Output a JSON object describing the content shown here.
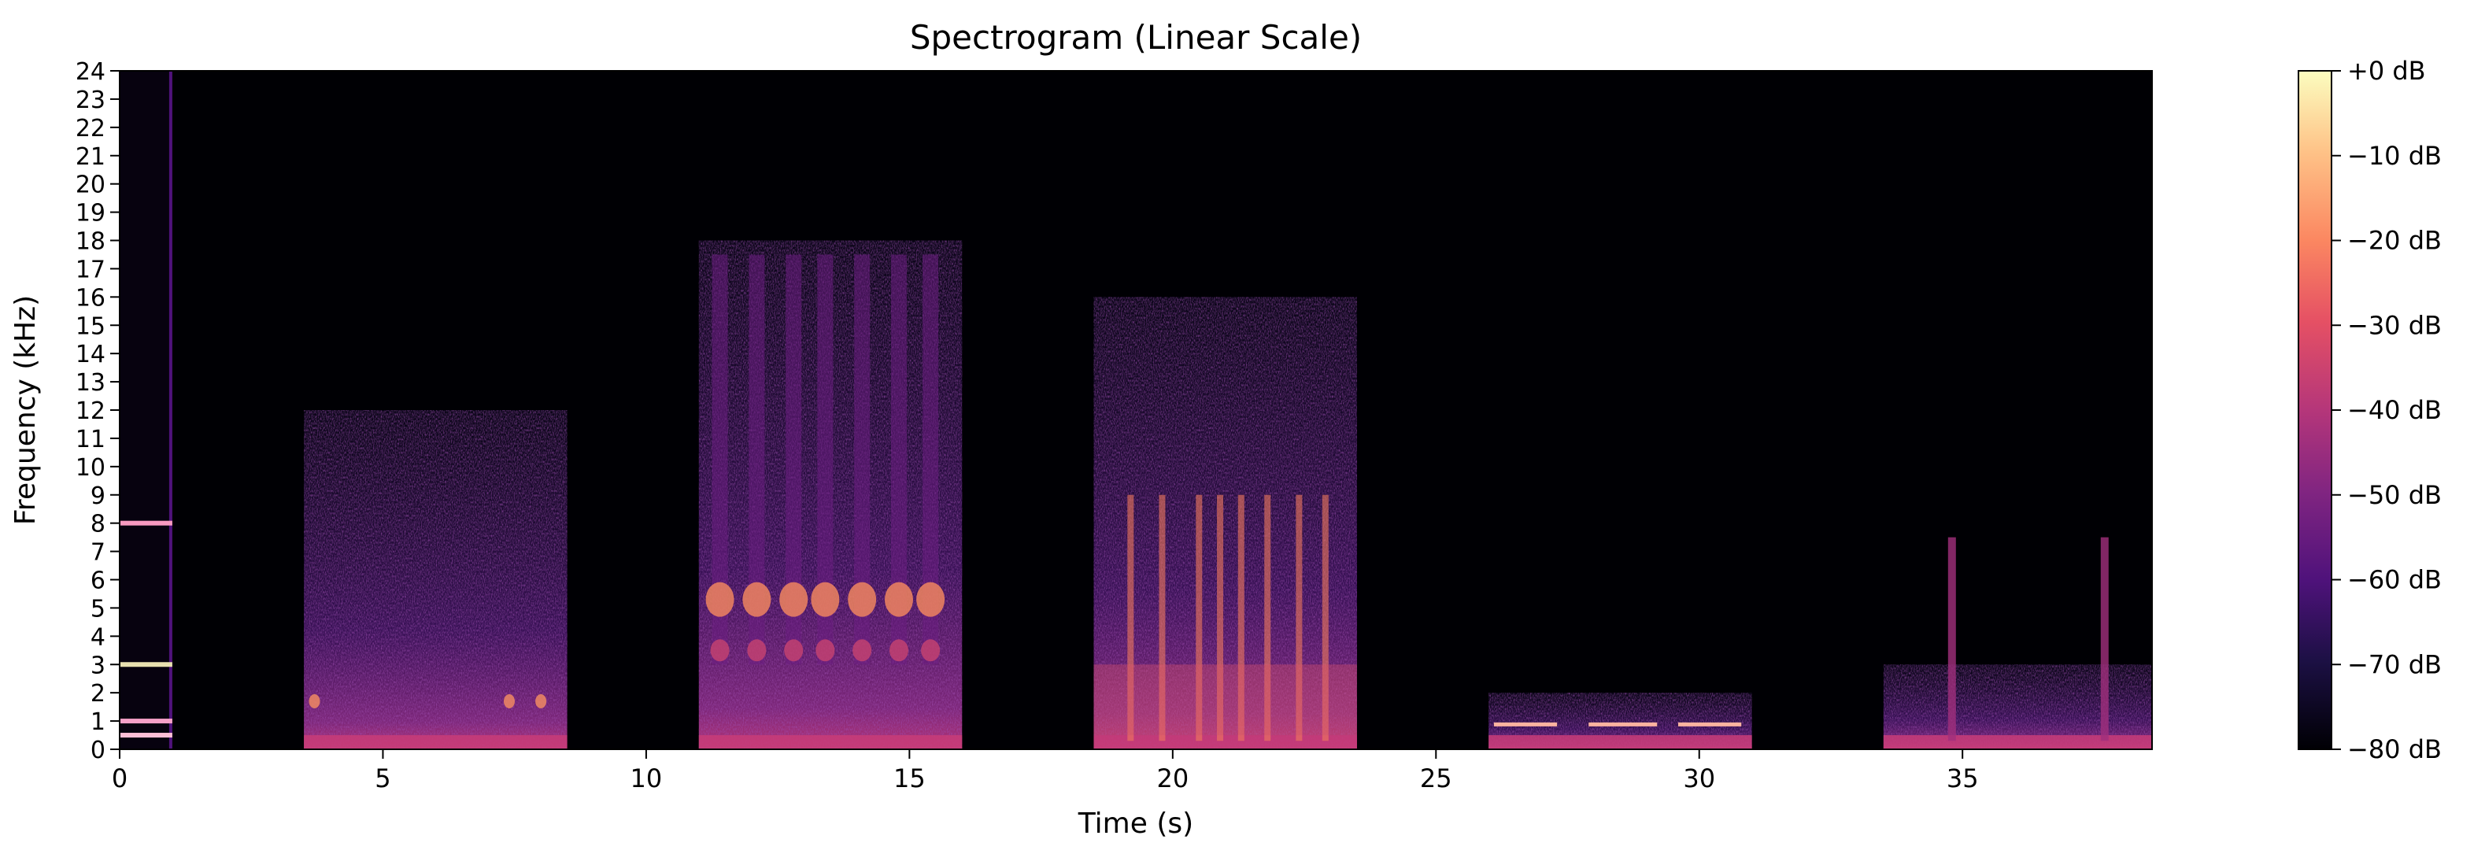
{
  "chart_data": {
    "type": "heatmap",
    "title": "Spectrogram (Linear Scale)",
    "xlabel": "Time (s)",
    "ylabel": "Frequency (kHz)",
    "xlim": [
      0,
      38.6
    ],
    "ylim": [
      0,
      24
    ],
    "x_ticks": [
      0,
      5,
      10,
      15,
      20,
      25,
      30,
      35
    ],
    "y_ticks": [
      0,
      1,
      2,
      3,
      4,
      5,
      6,
      7,
      8,
      9,
      10,
      11,
      12,
      13,
      14,
      15,
      16,
      17,
      18,
      19,
      20,
      21,
      22,
      23,
      24
    ],
    "colormap": "magma",
    "colorbar": {
      "range_db": [
        -80,
        0
      ],
      "ticks": [
        "+0 dB",
        "−10 dB",
        "−20 dB",
        "−30 dB",
        "−40 dB",
        "−50 dB",
        "−60 dB",
        "−70 dB",
        "−80 dB"
      ],
      "tick_values": [
        0,
        -10,
        -20,
        -30,
        -40,
        -50,
        -60,
        -70,
        -80
      ]
    },
    "segments": [
      {
        "start": 0.0,
        "end": 1.0,
        "max_khz": 24,
        "kind": "tones",
        "tones_khz": [
          0.5,
          1.0,
          3.0,
          8.0
        ]
      },
      {
        "start": 3.5,
        "end": 8.5,
        "max_khz": 12,
        "kind": "noise-low"
      },
      {
        "start": 11.0,
        "end": 16.0,
        "max_khz": 18,
        "kind": "bursts",
        "burst_times": [
          11.4,
          12.1,
          12.8,
          13.4,
          14.1,
          14.8,
          15.4
        ]
      },
      {
        "start": 18.5,
        "end": 23.5,
        "max_khz": 16,
        "kind": "broadband"
      },
      {
        "start": 26.0,
        "end": 31.0,
        "max_khz": 2,
        "kind": "low-band"
      },
      {
        "start": 33.5,
        "end": 38.6,
        "max_khz": 3,
        "kind": "low-band-clicks"
      }
    ]
  }
}
